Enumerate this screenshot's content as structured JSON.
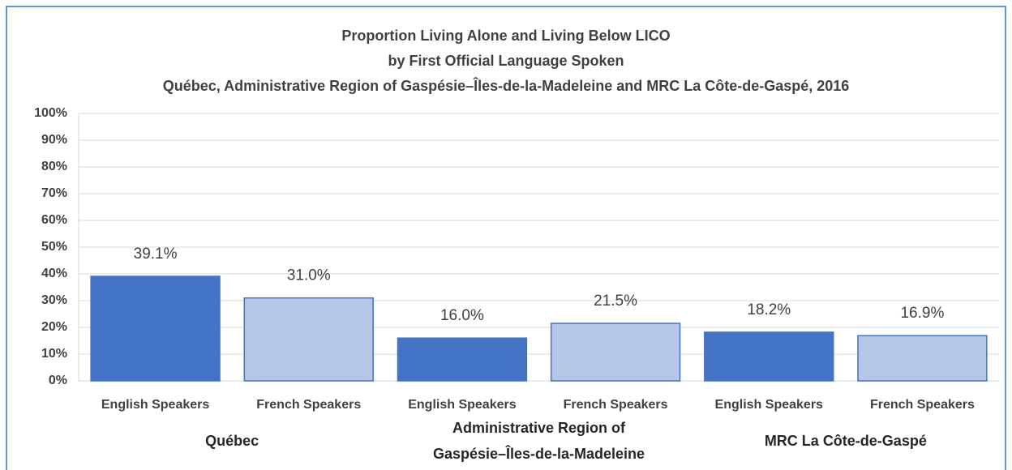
{
  "chart_data": {
    "type": "bar",
    "title": [
      "Proportion Living Alone and Living Below LICO",
      "by First Official Language Spoken",
      "Québec, Administrative Region of Gaspésie–Îles-de-la-Madeleine and MRC La Côte-de-Gaspé, 2016"
    ],
    "categories": [
      "English Speakers",
      "French Speakers",
      "English Speakers",
      "French Speakers",
      "English Speakers",
      "French Speakers"
    ],
    "groups": [
      "Québec",
      "Administrative Region of Gaspésie–Îles-de-la-Madeleine",
      "MRC La Côte-de-Gaspé"
    ],
    "values": [
      39.1,
      31.0,
      16.0,
      21.5,
      18.2,
      16.9
    ],
    "value_labels": [
      "39.1%",
      "31.0%",
      "16.0%",
      "21.5%",
      "18.2%",
      "16.9%"
    ],
    "colors": [
      "#4472c4",
      "#b4c7e7",
      "#4472c4",
      "#b4c7e7",
      "#4472c4",
      "#b4c7e7"
    ],
    "ylim": [
      0,
      100
    ],
    "yticks": [
      {
        "value": 0,
        "label": "0%"
      },
      {
        "value": 10,
        "label": "10%"
      },
      {
        "value": 20,
        "label": "20%"
      },
      {
        "value": 30,
        "label": "30%"
      },
      {
        "value": 40,
        "label": "40%"
      },
      {
        "value": 50,
        "label": "50%"
      },
      {
        "value": 60,
        "label": "60%"
      },
      {
        "value": 70,
        "label": "70%"
      },
      {
        "value": 80,
        "label": "80%"
      },
      {
        "value": 90,
        "label": "90%"
      },
      {
        "value": 100,
        "label": "100%"
      }
    ],
    "grid": true
  }
}
